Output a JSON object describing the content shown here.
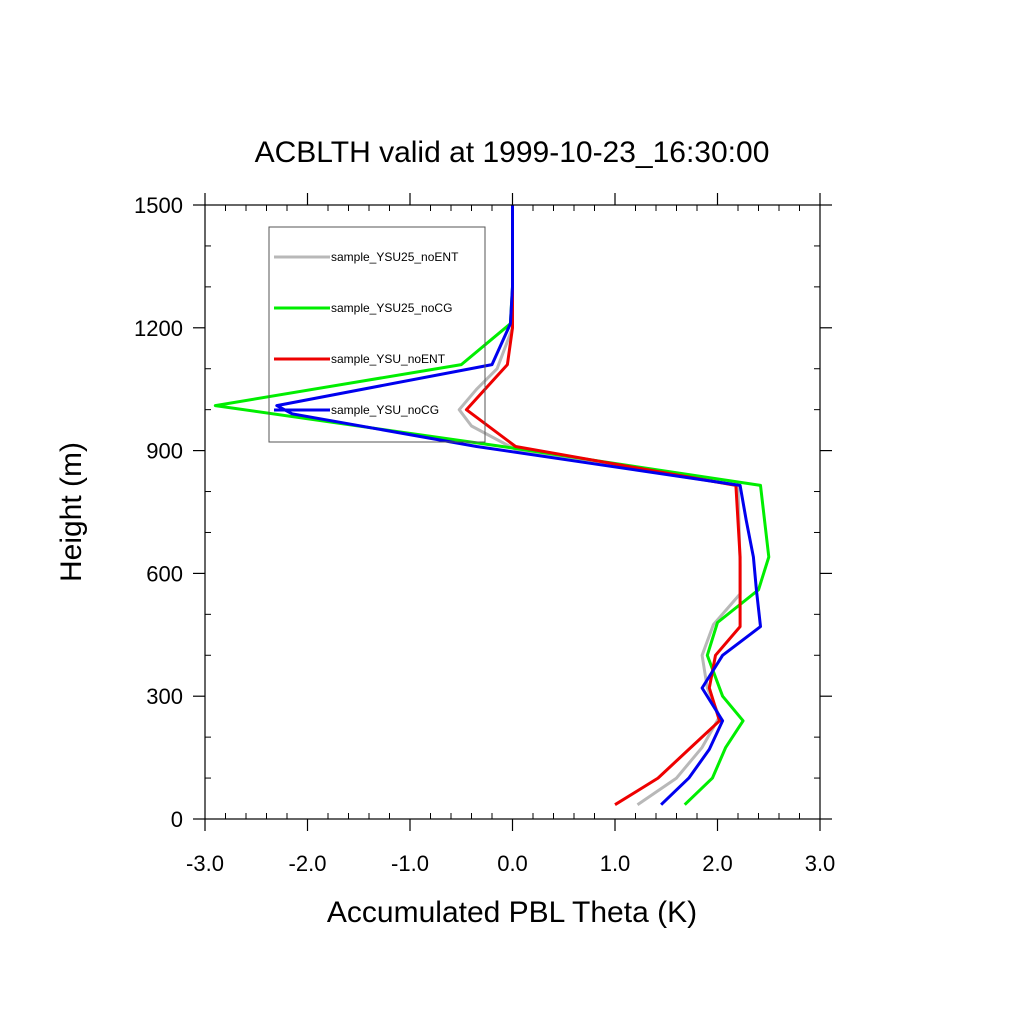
{
  "chart_data": {
    "type": "line",
    "title": "ACBLTH valid at 1999-10-23_16:30:00",
    "xlabel": "Accumulated PBL Theta (K)",
    "ylabel": "Height (m)",
    "xlim": [
      -3.0,
      3.0
    ],
    "ylim": [
      0,
      1500
    ],
    "xticks": [
      -3.0,
      -2.0,
      -1.0,
      0.0,
      1.0,
      2.0,
      3.0
    ],
    "xtick_labels": [
      "-3.0",
      "-2.0",
      "-1.0",
      "0.0",
      "1.0",
      "2.0",
      "3.0"
    ],
    "yticks": [
      0,
      300,
      600,
      900,
      1200,
      1500
    ],
    "ytick_labels": [
      "0",
      "300",
      "600",
      "900",
      "1200",
      "1500"
    ],
    "grid": false,
    "legend_position": "top-left",
    "series": [
      {
        "name": "sample_YSU25_noENT",
        "color": "#b8b8b8",
        "x": [
          1.22,
          1.6,
          1.85,
          2.02,
          1.9,
          1.85,
          1.96,
          2.22,
          2.22,
          2.2,
          0.05,
          -0.4,
          -0.52,
          -0.35,
          -0.15,
          0.0,
          0.0,
          0.0
        ],
        "y": [
          35,
          100,
          175,
          250,
          320,
          400,
          475,
          550,
          620,
          815,
          900,
          960,
          1000,
          1050,
          1100,
          1200,
          1300,
          1500
        ]
      },
      {
        "name": "sample_YSU25_noCG",
        "color": "#00ee00",
        "x": [
          1.68,
          1.95,
          2.08,
          2.25,
          2.05,
          1.9,
          2.0,
          2.4,
          2.5,
          2.42,
          -0.1,
          -2.9,
          -0.5,
          -0.02,
          0.0,
          0.0
        ],
        "y": [
          35,
          100,
          175,
          240,
          300,
          400,
          480,
          560,
          640,
          815,
          910,
          1010,
          1110,
          1210,
          1300,
          1500
        ]
      },
      {
        "name": "sample_YSU_noENT",
        "color": "#ee0000",
        "x": [
          1.0,
          1.42,
          1.72,
          2.02,
          1.92,
          1.98,
          2.22,
          2.22,
          2.22,
          2.18,
          0.03,
          -0.45,
          -0.05,
          0.0,
          0.0,
          0.0
        ],
        "y": [
          35,
          100,
          170,
          240,
          320,
          400,
          470,
          560,
          640,
          815,
          910,
          1000,
          1110,
          1200,
          1300,
          1500
        ]
      },
      {
        "name": "sample_YSU_noCG",
        "color": "#0000ee",
        "x": [
          1.45,
          1.72,
          1.92,
          2.05,
          1.85,
          2.05,
          2.42,
          2.38,
          2.35,
          2.28,
          2.22,
          -0.35,
          -2.15,
          -2.3,
          -0.2,
          -0.02,
          0.0,
          0.0
        ],
        "y": [
          35,
          100,
          170,
          240,
          320,
          400,
          470,
          560,
          640,
          730,
          815,
          910,
          990,
          1010,
          1110,
          1210,
          1300,
          1500
        ]
      }
    ]
  }
}
